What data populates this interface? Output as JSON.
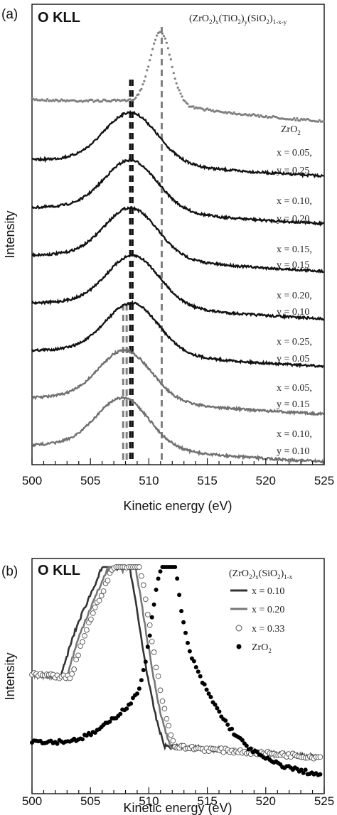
{
  "chart_data": [
    {
      "type": "line",
      "panel": "(a)",
      "title": "O KLL",
      "formula": {
        "parts": [
          "(ZrO",
          "2",
          ")",
          "x",
          "(TiO",
          "2",
          ")",
          "y",
          "(SiO",
          "2",
          ")",
          "1-x-y"
        ]
      },
      "xlabel": "Kinetic energy (eV)",
      "ylabel": "Intensity",
      "xlim": [
        500,
        525
      ],
      "xticks": [
        "500",
        "505",
        "510",
        "515",
        "520",
        "525"
      ],
      "grid": false,
      "series": [
        {
          "name": "ZrO2",
          "labels": [
            "ZrO",
            "2"
          ],
          "color": "#808080",
          "style": "dots",
          "peak": 511.0,
          "baseline": 0.0,
          "offset": 7,
          "amp": 1.3
        },
        {
          "name": "x = 0.05, y = 0.25",
          "labels": [
            "x = 0.05,",
            "y = 0.25"
          ],
          "color": "#111111",
          "style": "line",
          "peak": 508.5,
          "offset": 6,
          "amp": 0.85
        },
        {
          "name": "x = 0.10, y = 0.20",
          "labels": [
            "x = 0.10,",
            "y = 0.20"
          ],
          "color": "#111111",
          "style": "line",
          "peak": 508.5,
          "offset": 5,
          "amp": 0.85
        },
        {
          "name": "x = 0.15, y = 0.15",
          "labels": [
            "x = 0.15,",
            "y = 0.15"
          ],
          "color": "#111111",
          "style": "line",
          "peak": 508.5,
          "offset": 4,
          "amp": 0.85
        },
        {
          "name": "x = 0.20, y = 0.10",
          "labels": [
            "x = 0.20,",
            "y = 0.10"
          ],
          "color": "#111111",
          "style": "line",
          "peak": 508.7,
          "offset": 3,
          "amp": 0.85
        },
        {
          "name": "x = 0.25, y = 0.05",
          "labels": [
            "x = 0.25,",
            "y = 0.05"
          ],
          "color": "#111111",
          "style": "line",
          "peak": 508.6,
          "offset": 2,
          "amp": 0.85
        },
        {
          "name": "x = 0.05, y = 0.15",
          "labels": [
            "x = 0.05,",
            "y = 0.15"
          ],
          "color": "#707070",
          "style": "line",
          "peak": 508.0,
          "offset": 1,
          "amp": 0.85
        },
        {
          "name": "x = 0.10, y = 0.10",
          "labels": [
            "x = 0.10,",
            "y = 0.10"
          ],
          "color": "#707070",
          "style": "line",
          "peak": 507.8,
          "offset": 0,
          "amp": 0.85
        }
      ],
      "reference_lines": [
        {
          "x": 511.1,
          "color": "#808080"
        },
        {
          "x": 508.4,
          "color": "#111111"
        },
        {
          "x": 508.6,
          "color": "#111111"
        },
        {
          "x": 507.8,
          "color": "#808080"
        },
        {
          "x": 508.1,
          "color": "#808080"
        }
      ]
    },
    {
      "type": "scatter",
      "panel": "(b)",
      "title": "O KLL",
      "formula": {
        "parts": [
          "(ZrO",
          "2",
          ")",
          "x",
          "(SiO",
          "2",
          ")",
          "1-x"
        ]
      },
      "xlabel": "Kinetic energy (eV)",
      "ylabel": "Intensity",
      "xlim": [
        500,
        525
      ],
      "xticks": [
        "500",
        "505",
        "510",
        "515",
        "520",
        "525"
      ],
      "grid": false,
      "series": [
        {
          "name": "x = 0.10",
          "labels": [
            "x = 0.10"
          ],
          "color": "#333333",
          "style": "line",
          "peak": 507.3
        },
        {
          "name": "x = 0.20",
          "labels": [
            "x = 0.20"
          ],
          "color": "#777777",
          "style": "line",
          "peak": 507.8
        },
        {
          "name": "x = 0.33",
          "labels": [
            "x = 0.33"
          ],
          "color": "#555555",
          "style": "open-circles",
          "peak": 508.2
        },
        {
          "name": "ZrO2",
          "labels": [
            "ZrO",
            "2"
          ],
          "color": "#000000",
          "style": "filled-dots",
          "peak": 511.2
        }
      ]
    }
  ]
}
